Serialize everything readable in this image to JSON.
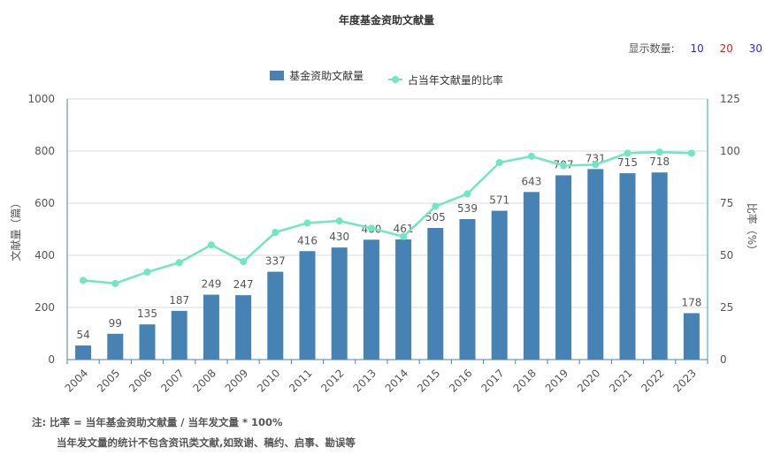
{
  "title": "年度基金资助文献量",
  "display_count": {
    "label": "显示数量:",
    "options": [
      {
        "value": "10",
        "color": "#2f27e0"
      },
      {
        "value": "20",
        "color": "#e02020"
      },
      {
        "value": "30",
        "color": "#2f27e0"
      }
    ]
  },
  "colors": {
    "bar": "#4682b4",
    "line": "#6ee7c2",
    "axis_left": "#4682b4",
    "axis_right": "#2aa3a6",
    "grid": "#d9d9d9",
    "text": "#555555"
  },
  "chart_data": {
    "type": "bar",
    "title": "年度基金资助文献量",
    "categories": [
      "2004",
      "2005",
      "2006",
      "2007",
      "2008",
      "2009",
      "2010",
      "2011",
      "2012",
      "2013",
      "2014",
      "2015",
      "2016",
      "2017",
      "2018",
      "2019",
      "2020",
      "2021",
      "2022",
      "2023"
    ],
    "series": [
      {
        "name": "基金资助文献量",
        "type": "bar",
        "axis": "left",
        "values": [
          54,
          99,
          135,
          187,
          249,
          247,
          337,
          416,
          430,
          460,
          461,
          505,
          539,
          571,
          643,
          707,
          731,
          715,
          718,
          178
        ]
      },
      {
        "name": "占当年文献量的比率",
        "type": "line",
        "axis": "right",
        "values": [
          38,
          36.5,
          42,
          46.5,
          55,
          47,
          61,
          65.5,
          66.5,
          63,
          59,
          73.5,
          79.5,
          94.5,
          97.5,
          93,
          93.5,
          99,
          99.5,
          99
        ]
      }
    ],
    "ylabel": "文献量（篇）",
    "ylabel_right": "比率（%）",
    "ylim": [
      0,
      1000
    ],
    "ylim_right": [
      0,
      125
    ],
    "yticks": [
      0,
      200,
      400,
      600,
      800,
      1000
    ],
    "yticks_right": [
      0,
      25,
      50,
      75,
      100,
      125
    ],
    "grid": true,
    "legend": "top-center"
  },
  "notes": {
    "line1": "注:   比率 = 当年基金资助文献量 / 当年发文量 * 100%",
    "line2": "当年发文量的统计不包含资讯类文献,如致谢、稿约、启事、勘误等"
  }
}
